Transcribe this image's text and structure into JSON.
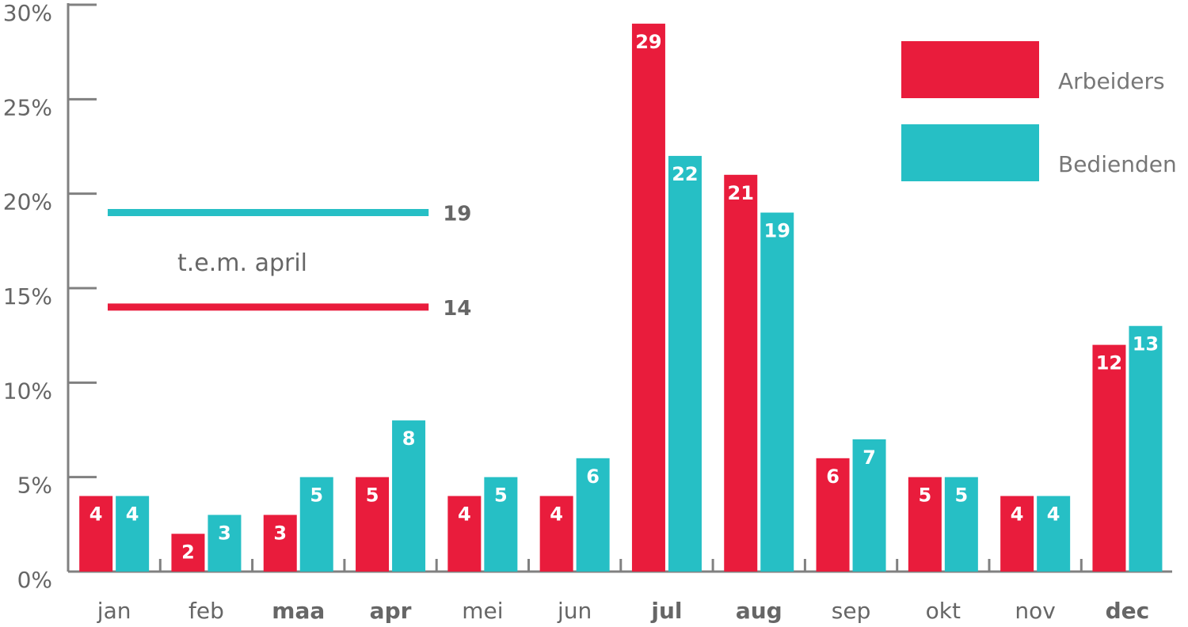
{
  "chart_data": {
    "type": "bar",
    "categories": [
      "jan",
      "feb",
      "maa",
      "apr",
      "mei",
      "jun",
      "jul",
      "aug",
      "sep",
      "okt",
      "nov",
      "dec"
    ],
    "bold_categories": [
      "maa",
      "apr",
      "jul",
      "aug",
      "dec"
    ],
    "series": [
      {
        "name": "Arbeiders",
        "color": "#e91c3c",
        "values": [
          4,
          2,
          3,
          5,
          4,
          4,
          29,
          21,
          6,
          5,
          4,
          12
        ]
      },
      {
        "name": "Bedienden",
        "color": "#26bfc5",
        "values": [
          4,
          3,
          5,
          8,
          5,
          6,
          22,
          19,
          7,
          5,
          4,
          13
        ]
      }
    ],
    "ylim": [
      0,
      30
    ],
    "yticks": [
      0,
      5,
      10,
      15,
      20,
      25,
      30
    ],
    "ytick_labels": [
      "0%",
      "5%",
      "10%",
      "15%",
      "20%",
      "25%",
      "30%"
    ],
    "grid": false,
    "legend_position": "top-right",
    "reference_lines": [
      {
        "series": "Bedienden",
        "value": 19,
        "label": "19",
        "color": "#26bfc5",
        "x_start": "jan",
        "x_end": "apr"
      },
      {
        "series": "Arbeiders",
        "value": 14,
        "label": "14",
        "color": "#e91c3c",
        "x_start": "jan",
        "x_end": "apr"
      }
    ],
    "reference_caption": "t.e.m. april",
    "axis_color": "#808080"
  }
}
